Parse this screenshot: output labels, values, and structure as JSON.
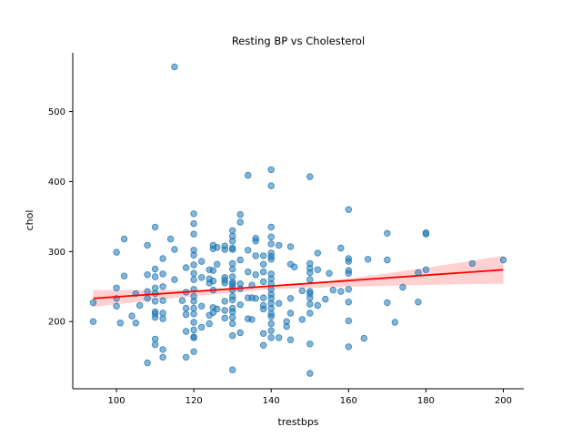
{
  "chart_data": {
    "type": "scatter",
    "title": "Resting BP vs Cholesterol",
    "xlabel": "trestbps",
    "ylabel": "chol",
    "xlim": [
      88.7,
      205.3
    ],
    "ylim": [
      104,
      584
    ],
    "xticks": [
      100,
      120,
      140,
      160,
      180,
      200
    ],
    "yticks": [
      200,
      300,
      400,
      500
    ],
    "grid": false,
    "legend": "none",
    "point_color": "#1f77b4",
    "fit_color": "#ff0000",
    "band_color": "#ffb3b3",
    "fit_line": {
      "x": [
        94,
        200
      ],
      "y": [
        233,
        274
      ]
    },
    "confidence_band": {
      "x": [
        94,
        110,
        125,
        140,
        155,
        170,
        185,
        200
      ],
      "lower": [
        221,
        231,
        239,
        246,
        249,
        251,
        253,
        254
      ],
      "upper": [
        245,
        245,
        245,
        249,
        258,
        269,
        281,
        294
      ]
    },
    "points": [
      [
        94,
        200
      ],
      [
        94,
        227
      ],
      [
        100,
        299
      ],
      [
        100,
        248
      ],
      [
        100,
        233
      ],
      [
        100,
        222
      ],
      [
        101,
        198
      ],
      [
        102,
        318
      ],
      [
        102,
        265
      ],
      [
        104,
        208
      ],
      [
        105,
        240
      ],
      [
        105,
        198
      ],
      [
        106,
        223
      ],
      [
        108,
        309
      ],
      [
        108,
        267
      ],
      [
        108,
        243
      ],
      [
        108,
        233
      ],
      [
        108,
        141
      ],
      [
        110,
        335
      ],
      [
        110,
        275
      ],
      [
        110,
        264
      ],
      [
        110,
        248
      ],
      [
        110,
        240
      ],
      [
        110,
        229
      ],
      [
        110,
        214
      ],
      [
        110,
        211
      ],
      [
        110,
        206
      ],
      [
        110,
        175
      ],
      [
        110,
        167
      ],
      [
        112,
        290
      ],
      [
        112,
        268
      ],
      [
        112,
        250
      ],
      [
        112,
        230
      ],
      [
        112,
        212
      ],
      [
        112,
        204
      ],
      [
        112,
        160
      ],
      [
        112,
        149
      ],
      [
        114,
        318
      ],
      [
        115,
        564
      ],
      [
        115,
        260
      ],
      [
        115,
        303
      ],
      [
        117,
        230
      ],
      [
        118,
        277
      ],
      [
        118,
        242
      ],
      [
        118,
        219
      ],
      [
        118,
        210
      ],
      [
        118,
        186
      ],
      [
        118,
        149
      ],
      [
        120,
        354
      ],
      [
        120,
        340
      ],
      [
        120,
        325
      ],
      [
        120,
        302
      ],
      [
        120,
        295
      ],
      [
        120,
        281
      ],
      [
        120,
        269
      ],
      [
        120,
        260
      ],
      [
        120,
        246
      ],
      [
        120,
        236
      ],
      [
        120,
        229
      ],
      [
        120,
        219
      ],
      [
        120,
        211
      ],
      [
        120,
        199
      ],
      [
        120,
        188
      ],
      [
        120,
        178
      ],
      [
        120,
        157
      ],
      [
        120,
        177
      ],
      [
        122,
        286
      ],
      [
        122,
        263
      ],
      [
        122,
        222
      ],
      [
        122,
        192
      ],
      [
        124,
        274
      ],
      [
        124,
        261
      ],
      [
        124,
        255
      ],
      [
        124,
        209
      ],
      [
        124,
        197
      ],
      [
        125,
        309
      ],
      [
        125,
        304
      ],
      [
        125,
        273
      ],
      [
        125,
        258
      ],
      [
        125,
        245
      ],
      [
        125,
        220
      ],
      [
        125,
        213
      ],
      [
        126,
        306
      ],
      [
        126,
        282
      ],
      [
        126,
        218
      ],
      [
        128,
        308
      ],
      [
        128,
        303
      ],
      [
        128,
        263
      ],
      [
        128,
        259
      ],
      [
        128,
        255
      ],
      [
        128,
        229
      ],
      [
        128,
        216
      ],
      [
        128,
        205
      ],
      [
        130,
        330
      ],
      [
        130,
        322
      ],
      [
        130,
        315
      ],
      [
        130,
        305
      ],
      [
        130,
        303
      ],
      [
        130,
        283
      ],
      [
        130,
        275
      ],
      [
        130,
        264
      ],
      [
        130,
        256
      ],
      [
        130,
        254
      ],
      [
        130,
        250
      ],
      [
        130,
        245
      ],
      [
        130,
        236
      ],
      [
        130,
        231
      ],
      [
        130,
        219
      ],
      [
        130,
        214
      ],
      [
        130,
        206
      ],
      [
        130,
        197
      ],
      [
        130,
        180
      ],
      [
        130,
        131
      ],
      [
        132,
        353
      ],
      [
        132,
        342
      ],
      [
        132,
        288
      ],
      [
        132,
        254
      ],
      [
        132,
        247
      ],
      [
        132,
        224
      ],
      [
        132,
        184
      ],
      [
        134,
        409
      ],
      [
        134,
        302
      ],
      [
        134,
        271
      ],
      [
        134,
        234
      ],
      [
        134,
        204
      ],
      [
        135,
        252
      ],
      [
        135,
        234
      ],
      [
        135,
        203
      ],
      [
        136,
        319
      ],
      [
        136,
        315
      ],
      [
        136,
        294
      ],
      [
        136,
        267
      ],
      [
        136,
        233
      ],
      [
        138,
        294
      ],
      [
        138,
        282
      ],
      [
        138,
        271
      ],
      [
        138,
        257
      ],
      [
        138,
        234
      ],
      [
        138,
        223
      ],
      [
        138,
        218
      ],
      [
        138,
        183
      ],
      [
        138,
        166
      ],
      [
        140,
        417
      ],
      [
        140,
        394
      ],
      [
        140,
        335
      ],
      [
        140,
        321
      ],
      [
        140,
        311
      ],
      [
        140,
        298
      ],
      [
        140,
        293
      ],
      [
        140,
        289
      ],
      [
        140,
        268
      ],
      [
        140,
        261
      ],
      [
        140,
        254
      ],
      [
        140,
        246
      ],
      [
        140,
        239
      ],
      [
        140,
        233
      ],
      [
        140,
        226
      ],
      [
        140,
        219
      ],
      [
        140,
        211
      ],
      [
        140,
        207
      ],
      [
        140,
        197
      ],
      [
        140,
        187
      ],
      [
        140,
        177
      ],
      [
        142,
        309
      ],
      [
        142,
        226
      ],
      [
        142,
        177
      ],
      [
        144,
        200
      ],
      [
        144,
        193
      ],
      [
        145,
        307
      ],
      [
        145,
        282
      ],
      [
        145,
        233
      ],
      [
        145,
        212
      ],
      [
        145,
        174
      ],
      [
        146,
        278
      ],
      [
        148,
        244
      ],
      [
        148,
        203
      ],
      [
        150,
        407
      ],
      [
        150,
        283
      ],
      [
        150,
        276
      ],
      [
        150,
        270
      ],
      [
        150,
        260
      ],
      [
        150,
        243
      ],
      [
        150,
        240
      ],
      [
        150,
        234
      ],
      [
        150,
        225
      ],
      [
        150,
        212
      ],
      [
        150,
        168
      ],
      [
        150,
        126
      ],
      [
        152,
        298
      ],
      [
        152,
        274
      ],
      [
        152,
        223
      ],
      [
        154,
        232
      ],
      [
        155,
        269
      ],
      [
        156,
        245
      ],
      [
        158,
        305
      ],
      [
        158,
        243
      ],
      [
        160,
        360
      ],
      [
        160,
        290
      ],
      [
        160,
        286
      ],
      [
        160,
        273
      ],
      [
        160,
        269
      ],
      [
        160,
        246
      ],
      [
        160,
        228
      ],
      [
        160,
        201
      ],
      [
        160,
        164
      ],
      [
        164,
        176
      ],
      [
        165,
        289
      ],
      [
        170,
        326
      ],
      [
        170,
        288
      ],
      [
        170,
        227
      ],
      [
        172,
        199
      ],
      [
        174,
        249
      ],
      [
        178,
        270
      ],
      [
        178,
        228
      ],
      [
        180,
        327
      ],
      [
        180,
        325
      ],
      [
        180,
        274
      ],
      [
        192,
        283
      ],
      [
        200,
        288
      ]
    ]
  }
}
